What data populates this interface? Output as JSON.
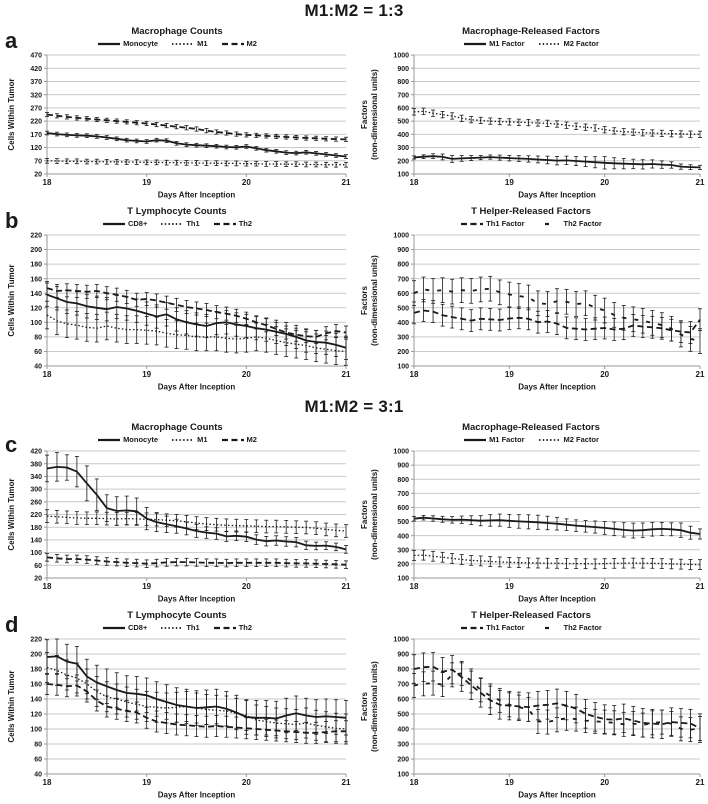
{
  "sections": [
    {
      "title": "M1:M2 = 1:3"
    },
    {
      "title": "M1:M2 = 3:1"
    }
  ],
  "panels": [
    {
      "label": "a"
    },
    {
      "label": "b"
    },
    {
      "label": "c"
    },
    {
      "label": "d"
    }
  ],
  "colors": {
    "series": "#1a1a1a",
    "grid": "#c9c9c9",
    "axis": "#999999",
    "text": "#1a1a1a"
  },
  "chart_data": [
    {
      "id": "a-left",
      "type": "line",
      "title": "Macrophage Counts",
      "xlabel": "Days After Inception",
      "ylabel": "Cells Within Tumor",
      "ylim": [
        20,
        470
      ],
      "ytick_step": 50,
      "xlim": [
        18,
        21
      ],
      "xticks": [
        18,
        19,
        20,
        21
      ],
      "x_start": 18,
      "x_step": 0.1,
      "grid": "horizontal",
      "legend_position": "top",
      "series": [
        {
          "name": "Monocyte",
          "style": "solid",
          "y": [
            175,
            171,
            168,
            166,
            165,
            162,
            158,
            153,
            148,
            145,
            143,
            148,
            146,
            136,
            131,
            129,
            127,
            125,
            122,
            121,
            124,
            117,
            110,
            106,
            101,
            99,
            102,
            98,
            94,
            90,
            86
          ],
          "err": 7
        },
        {
          "name": "M1",
          "style": "dotted",
          "y": [
            70,
            69,
            68,
            68,
            67,
            67,
            66,
            66,
            65,
            65,
            64,
            64,
            63,
            63,
            62,
            62,
            61,
            61,
            60,
            60,
            59,
            59,
            58,
            58,
            57,
            57,
            56,
            56,
            55,
            55,
            55
          ],
          "err": 9
        },
        {
          "name": "M2",
          "style": "dashed",
          "y": [
            245,
            240,
            236,
            232,
            229,
            226,
            223,
            220,
            217,
            214,
            211,
            207,
            203,
            199,
            195,
            190,
            184,
            179,
            175,
            171,
            168,
            166,
            164,
            162,
            160,
            158,
            156,
            155,
            153,
            152,
            151
          ],
          "err": 8
        }
      ]
    },
    {
      "id": "a-right",
      "type": "line",
      "title": "Macrophage-Released Factors",
      "xlabel": "Days After Inception",
      "ylabel": "Factors",
      "ylabel2": "(non-dimensional units)",
      "ylim": [
        100,
        1000
      ],
      "ytick_step": 100,
      "xlim": [
        18,
        21
      ],
      "xticks": [
        18,
        19,
        20,
        21
      ],
      "x_start": 18,
      "x_step": 0.1,
      "grid": "horizontal",
      "legend_position": "top",
      "series": [
        {
          "name": "M1 Factor",
          "style": "solid",
          "y": [
            225,
            231,
            235,
            229,
            214,
            218,
            221,
            224,
            228,
            224,
            220,
            217,
            214,
            210,
            206,
            201,
            203,
            198,
            194,
            189,
            185,
            181,
            178,
            176,
            173,
            176,
            171,
            168,
            156,
            152,
            150
          ],
          "err": [
            12,
            14,
            18,
            22,
            26,
            22,
            19,
            16,
            16,
            19,
            21,
            22,
            24,
            26,
            29,
            32,
            32,
            34,
            37,
            42,
            47,
            42,
            39,
            36,
            35,
            31,
            28,
            24,
            20,
            18,
            16
          ]
        },
        {
          "name": "M2 Factor",
          "style": "dotted",
          "y": [
            570,
            574,
            560,
            549,
            539,
            521,
            511,
            505,
            500,
            497,
            494,
            491,
            489,
            486,
            483,
            478,
            469,
            461,
            454,
            448,
            435,
            426,
            420,
            416,
            412,
            410,
            407,
            405,
            403,
            401,
            400
          ],
          "err": 24
        }
      ]
    },
    {
      "id": "b-left",
      "type": "line",
      "title": "T Lymphocyte Counts",
      "xlabel": "Days After Inception",
      "ylabel": "Cells Within Tumor",
      "ylim": [
        40,
        220
      ],
      "ytick_step": 20,
      "xlim": [
        18,
        21
      ],
      "xticks": [
        18,
        19,
        20,
        21
      ],
      "x_start": 18,
      "x_step": 0.1,
      "grid": "horizontal",
      "legend_position": "top",
      "series": [
        {
          "name": "CD8+",
          "style": "solid",
          "y": [
            138,
            133,
            128,
            126,
            122,
            120,
            118,
            121,
            119,
            116,
            112,
            108,
            111,
            104,
            100,
            97,
            95,
            99,
            100,
            97,
            95,
            92,
            90,
            87,
            84,
            80,
            75,
            73,
            72,
            69,
            65
          ],
          "err": 16
        },
        {
          "name": "Th1",
          "style": "dotted",
          "y": [
            110,
            102,
            98,
            96,
            93,
            92,
            95,
            92,
            90,
            90,
            89,
            88,
            85,
            83,
            82,
            80,
            80,
            80,
            78,
            77,
            78,
            80,
            78,
            75,
            72,
            70,
            68,
            65,
            63,
            61,
            60
          ],
          "err": 19
        },
        {
          "name": "Th2",
          "style": "dashed",
          "y": [
            147,
            143,
            144,
            143,
            142,
            143,
            140,
            138,
            135,
            131,
            132,
            130,
            127,
            124,
            121,
            119,
            117,
            114,
            112,
            109,
            105,
            100,
            96,
            91,
            86,
            83,
            81,
            80,
            85,
            88,
            86
          ],
          "err": 9
        }
      ]
    },
    {
      "id": "b-right",
      "type": "line",
      "title": "T Helper-Released Factors",
      "xlabel": "Days After Inception",
      "ylabel": "Factors",
      "ylabel2": "(non-dimensional units)",
      "ylim": [
        100,
        1000
      ],
      "ytick_step": 100,
      "xlim": [
        18,
        21
      ],
      "xticks": [
        18,
        19,
        20,
        21
      ],
      "x_start": 18,
      "x_step": 0.1,
      "grid": "horizontal",
      "legend_position": "top",
      "series": [
        {
          "name": "Th1 Factor",
          "style": "dashed",
          "y": [
            465,
            481,
            474,
            449,
            436,
            424,
            412,
            424,
            420,
            416,
            426,
            431,
            424,
            401,
            406,
            391,
            362,
            356,
            351,
            356,
            361,
            351,
            356,
            379,
            371,
            366,
            359,
            346,
            336,
            330,
            418
          ],
          "err": 75
        },
        {
          "name": "Th2 Factor",
          "style": "longdash",
          "y": [
            601,
            626,
            616,
            621,
            611,
            621,
            616,
            626,
            631,
            606,
            591,
            581,
            571,
            531,
            526,
            546,
            541,
            526,
            531,
            501,
            481,
            451,
            431,
            421,
            411,
            396,
            381,
            356,
            316,
            286,
            271
          ],
          "err": 85
        }
      ]
    },
    {
      "id": "c-left",
      "type": "line",
      "title": "Macrophage Counts",
      "xlabel": "Days After Inception",
      "ylabel": "Cells Within Tumor",
      "ylim": [
        20,
        420
      ],
      "ytick_step": 40,
      "xlim": [
        18,
        21
      ],
      "xticks": [
        18,
        19,
        20,
        21
      ],
      "x_start": 18,
      "x_step": 0.1,
      "grid": "horizontal",
      "legend_position": "top",
      "series": [
        {
          "name": "Monocyte",
          "style": "solid",
          "y": [
            365,
            370,
            368,
            355,
            318,
            282,
            240,
            231,
            233,
            230,
            207,
            196,
            189,
            183,
            176,
            168,
            163,
            160,
            151,
            153,
            150,
            141,
            136,
            138,
            135,
            133,
            123,
            121,
            122,
            118,
            110
          ],
          "err": [
            42,
            45,
            40,
            48,
            55,
            50,
            42,
            45,
            45,
            42,
            35,
            30,
            26,
            22,
            20,
            20,
            18,
            18,
            16,
            15,
            15,
            15,
            15,
            15,
            15,
            15,
            13,
            12,
            12,
            12,
            12
          ]
        },
        {
          "name": "M1",
          "style": "dotted",
          "y": [
            215,
            213,
            211,
            209,
            208,
            208,
            207,
            206,
            207,
            206,
            205,
            204,
            202,
            200,
            197,
            193,
            190,
            188,
            186,
            185,
            184,
            183,
            182,
            182,
            181,
            180,
            179,
            177,
            173,
            170,
            168
          ],
          "err": 20
        },
        {
          "name": "M2",
          "style": "dashed",
          "y": [
            85,
            82,
            80,
            80,
            78,
            75,
            72,
            70,
            68,
            67,
            65,
            67,
            69,
            70,
            70,
            69,
            68,
            68,
            67,
            68,
            68,
            68,
            68,
            68,
            67,
            66,
            66,
            65,
            64,
            63,
            62
          ],
          "err": 12
        }
      ]
    },
    {
      "id": "c-right",
      "type": "line",
      "title": "Macrophage-Released Factors",
      "xlabel": "Days After Inception",
      "ylabel": "Factors",
      "ylabel2": "(non-dimensional units)",
      "ylim": [
        100,
        1000
      ],
      "ytick_step": 100,
      "xlim": [
        18,
        21
      ],
      "xticks": [
        18,
        19,
        20,
        21
      ],
      "x_start": 18,
      "x_step": 0.1,
      "grid": "horizontal",
      "legend_position": "top",
      "series": [
        {
          "name": "M1 Factor",
          "style": "solid",
          "y": [
            520,
            527,
            522,
            516,
            512,
            513,
            510,
            506,
            508,
            510,
            505,
            501,
            498,
            495,
            490,
            485,
            478,
            471,
            466,
            461,
            455,
            448,
            441,
            436,
            439,
            445,
            448,
            445,
            439,
            421,
            412
          ],
          "err": [
            16,
            16,
            19,
            21,
            23,
            26,
            31,
            36,
            41,
            43,
            46,
            48,
            50,
            50,
            48,
            45,
            41,
            41,
            41,
            43,
            46,
            48,
            51,
            53,
            51,
            48,
            46,
            46,
            51,
            46,
            36
          ]
        },
        {
          "name": "M2 Factor",
          "style": "dotted",
          "y": [
            260,
            262,
            254,
            247,
            239,
            231,
            225,
            221,
            217,
            214,
            211,
            209,
            207,
            206,
            205,
            204,
            203,
            202,
            201,
            200,
            202,
            204,
            205,
            206,
            205,
            204,
            202,
            200,
            198,
            196,
            195
          ],
          "err": 35
        }
      ]
    },
    {
      "id": "d-left",
      "type": "line",
      "title": "T Lymphocyte Counts",
      "xlabel": "Days After Inception",
      "ylabel": "Cells Within Tumor",
      "ylim": [
        40,
        220
      ],
      "ytick_step": 20,
      "xlim": [
        18,
        21
      ],
      "xticks": [
        18,
        19,
        20,
        21
      ],
      "x_start": 18,
      "x_step": 0.1,
      "grid": "horizontal",
      "legend_position": "top",
      "series": [
        {
          "name": "CD8+",
          "style": "solid",
          "y": [
            196,
            197,
            190,
            187,
            170,
            162,
            157,
            152,
            148,
            147,
            145,
            140,
            136,
            132,
            130,
            128,
            129,
            130,
            127,
            122,
            116,
            115,
            115,
            114,
            118,
            121,
            118,
            116,
            117,
            116,
            115
          ],
          "err": 23
        },
        {
          "name": "Th1",
          "style": "dotted",
          "y": [
            182,
            178,
            172,
            168,
            160,
            150,
            143,
            140,
            136,
            133,
            130,
            129,
            128,
            129,
            130,
            128,
            126,
            125,
            124,
            121,
            118,
            112,
            110,
            108,
            107,
            106,
            108,
            105,
            103,
            101,
            100
          ],
          "err": 20
        },
        {
          "name": "Th2",
          "style": "dashed",
          "y": [
            160,
            159,
            157,
            158,
            150,
            138,
            130,
            127,
            124,
            122,
            115,
            110,
            108,
            106,
            105,
            104,
            103,
            104,
            103,
            102,
            101,
            100,
            99,
            98,
            97,
            96,
            95,
            95,
            96,
            97,
            97
          ],
          "err": 14
        }
      ]
    },
    {
      "id": "d-right",
      "type": "line",
      "title": "T Helper-Released Factors",
      "xlabel": "Days After Inception",
      "ylabel": "Factors",
      "ylabel2": "(non-dimensional units)",
      "ylim": [
        100,
        1000
      ],
      "ytick_step": 100,
      "xlim": [
        18,
        21
      ],
      "xticks": [
        18,
        19,
        20,
        21
      ],
      "x_start": 18,
      "x_step": 0.1,
      "grid": "horizontal",
      "legend_position": "top",
      "series": [
        {
          "name": "Th1 Factor",
          "style": "dashed",
          "y": [
            800,
            812,
            815,
            781,
            796,
            746,
            691,
            641,
            591,
            561,
            556,
            551,
            546,
            556,
            561,
            571,
            556,
            536,
            501,
            481,
            466,
            461,
            471,
            456,
            441,
            436,
            431,
            446,
            441,
            436,
            406
          ],
          "err": 95
        },
        {
          "name": "Th2 Factor",
          "style": "longdash",
          "y": [
            690,
            701,
            706,
            696,
            761,
            771,
            721,
            661,
            621,
            591,
            561,
            546,
            531,
            451,
            446,
            461,
            471,
            466,
            456,
            451,
            446,
            441,
            431,
            436,
            426,
            441,
            446,
            436,
            401,
            396,
            404
          ],
          "err": 80
        }
      ]
    }
  ]
}
